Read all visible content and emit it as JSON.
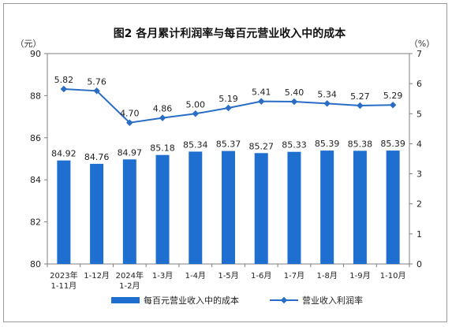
{
  "chart_data": {
    "type": "bar",
    "title": "图2  各月累计利润率与每百元营业收入中的成本",
    "left_axis_unit": "（元）",
    "right_axis_unit": "（%）",
    "ylim_left": [
      80,
      90
    ],
    "yticks_left": [
      80,
      82,
      84,
      86,
      88,
      90
    ],
    "ylim_right": [
      0,
      7
    ],
    "yticks_right": [
      0,
      1,
      2,
      3,
      4,
      5,
      6,
      7
    ],
    "grid": false,
    "legend_position": "bottom",
    "categories": [
      [
        "2023年",
        "1-11月"
      ],
      [
        "1-12月"
      ],
      [
        "2024年",
        "1-2月"
      ],
      [
        "1-3月"
      ],
      [
        "1-4月"
      ],
      [
        "1-5月"
      ],
      [
        "1-6月"
      ],
      [
        "1-7月"
      ],
      [
        "1-8月"
      ],
      [
        "1-9月"
      ],
      [
        "1-10月"
      ]
    ],
    "series": [
      {
        "name": "每百元营业收入中的成本",
        "type": "bar",
        "axis": "left",
        "color": "#1f6fd1",
        "values": [
          84.92,
          84.76,
          84.97,
          85.18,
          85.34,
          85.37,
          85.27,
          85.33,
          85.39,
          85.38,
          85.39
        ]
      },
      {
        "name": "营业收入利润率",
        "type": "line",
        "axis": "right",
        "color": "#2a6dc4",
        "values": [
          5.82,
          5.76,
          4.7,
          4.86,
          5.0,
          5.19,
          5.41,
          5.4,
          5.34,
          5.27,
          5.29
        ]
      }
    ]
  }
}
